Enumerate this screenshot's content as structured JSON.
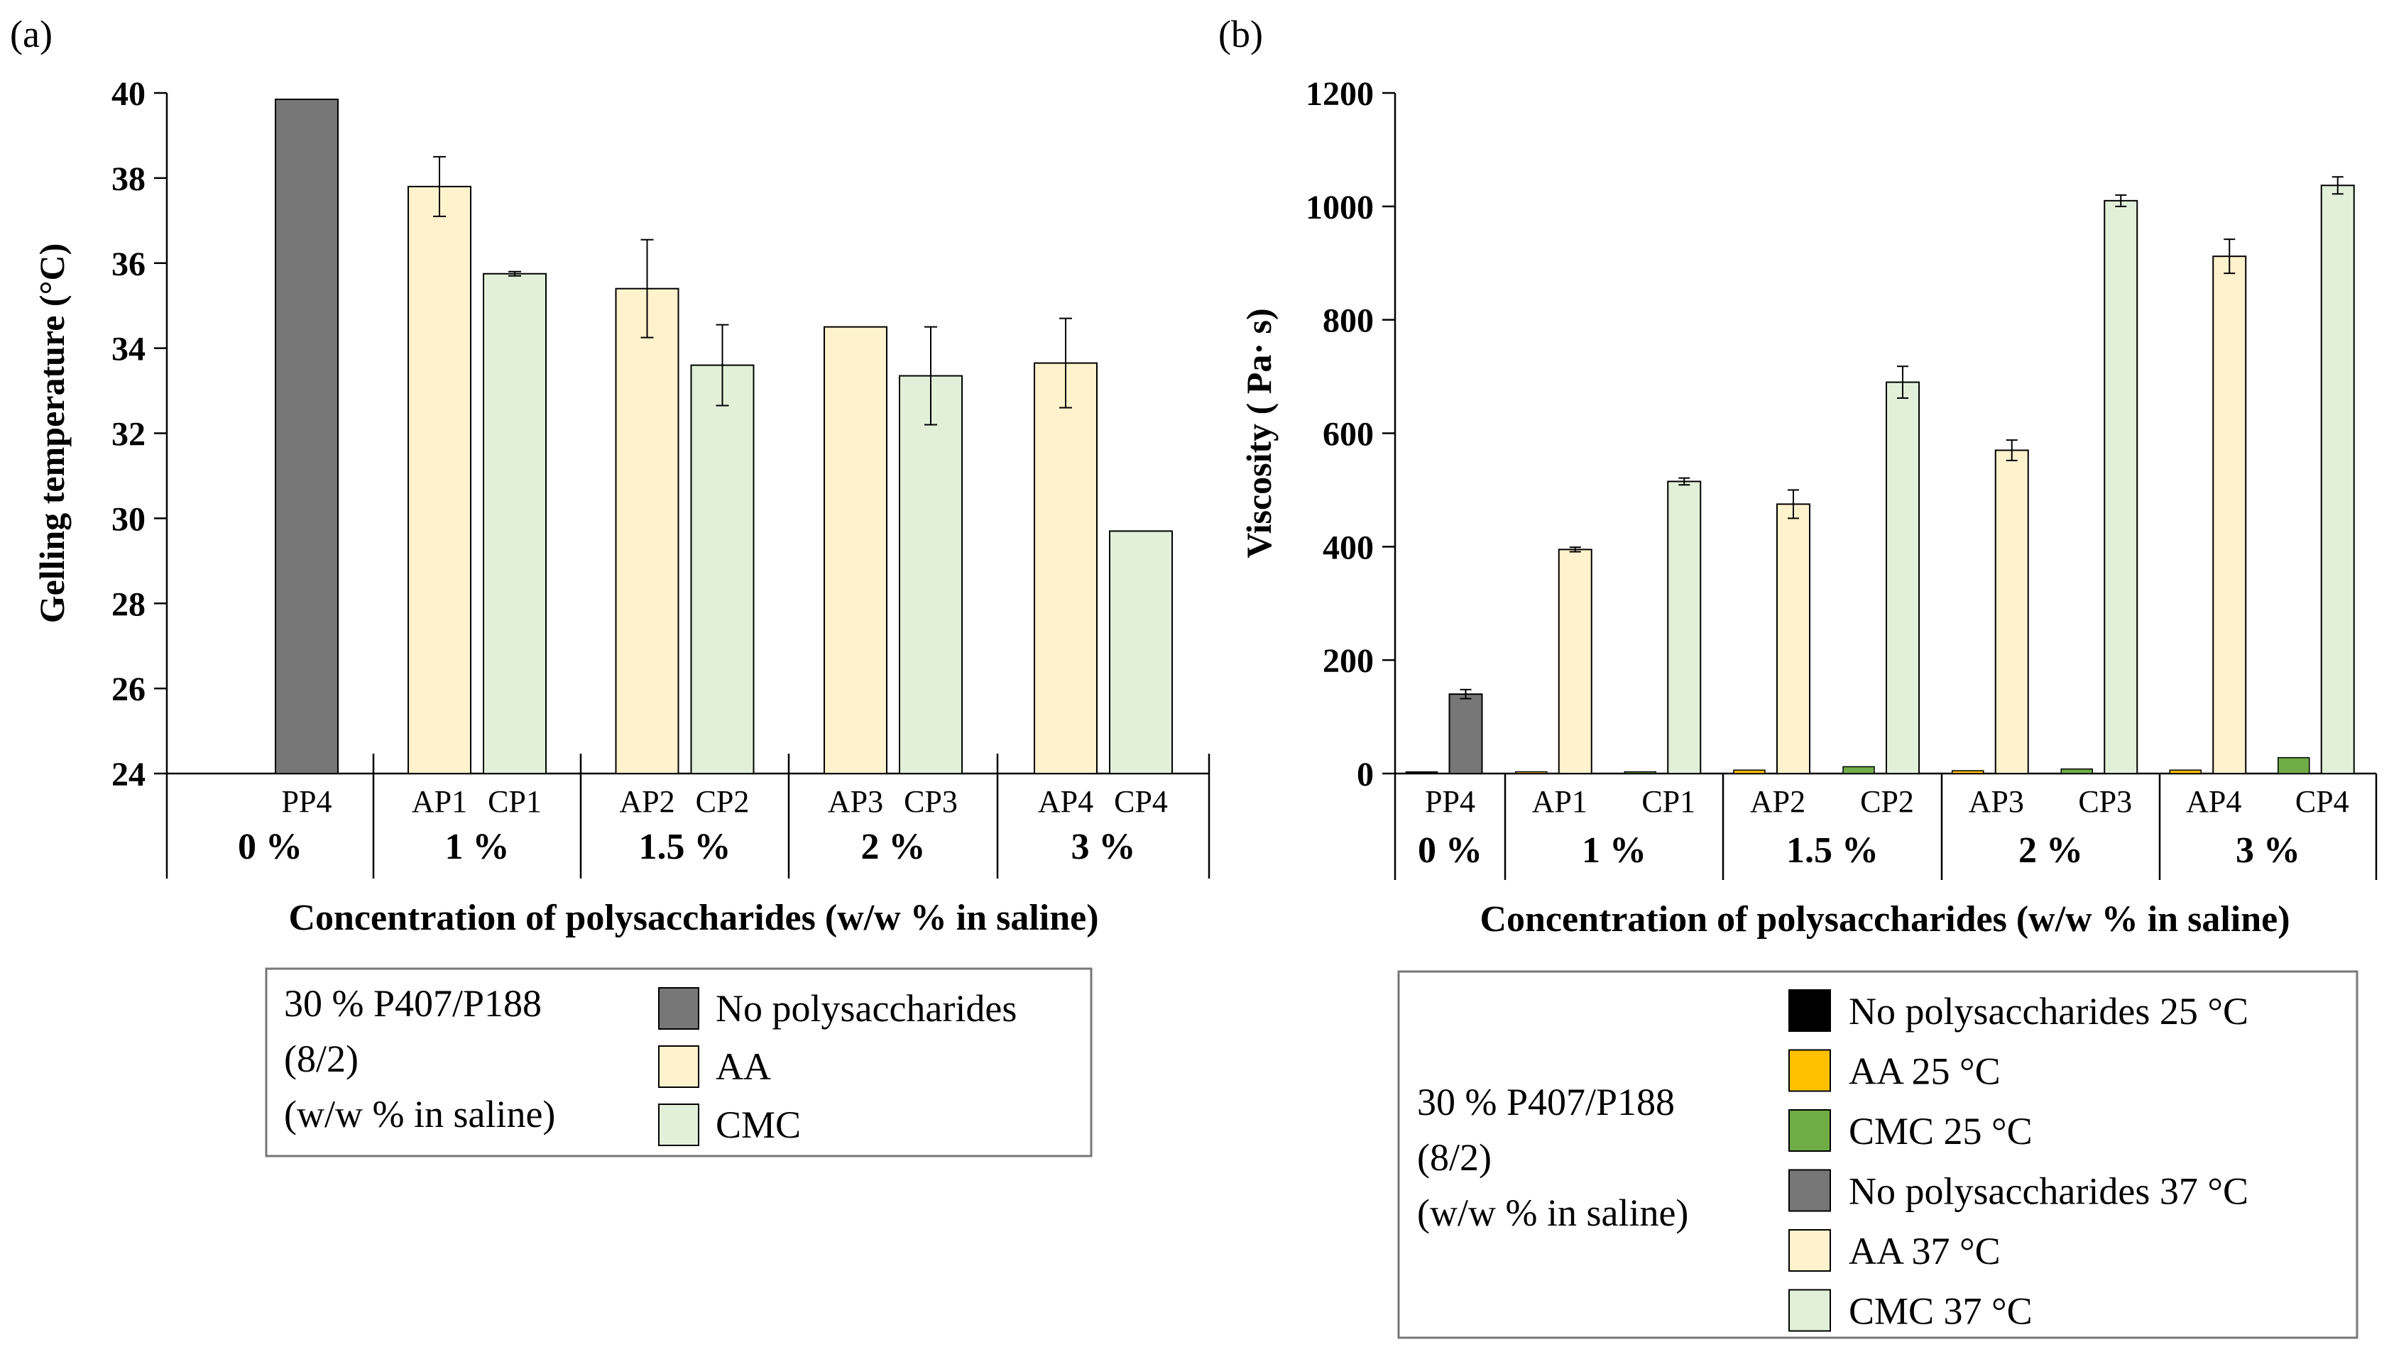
{
  "colors": {
    "none37": "#777777",
    "aa37": "#fff2cc",
    "cmc37": "#e2f0d9",
    "none25": "#000000",
    "aa25": "#ffc000",
    "cmc25": "#70ad47",
    "axis": "#000000"
  },
  "chart_data": [
    {
      "panel": "(a)",
      "type": "bar",
      "ylabel": "Gelling temperature (°C)",
      "xlabel": "Concentration of polysaccharides (w/w % in saline)",
      "ylim": [
        24,
        40
      ],
      "yticks": [
        24,
        26,
        28,
        30,
        32,
        34,
        36,
        38,
        40
      ],
      "grid": false,
      "groups": [
        {
          "label": "0 %",
          "bars": [
            {
              "name": "PP4",
              "value": 39.85,
              "err": 0,
              "series": "none37"
            }
          ]
        },
        {
          "label": "1 %",
          "bars": [
            {
              "name": "AP1",
              "value": 37.8,
              "err": 0.7,
              "series": "aa37"
            },
            {
              "name": "CP1",
              "value": 35.75,
              "err": 0.05,
              "series": "cmc37"
            }
          ]
        },
        {
          "label": "1.5 %",
          "bars": [
            {
              "name": "AP2",
              "value": 35.4,
              "err": 1.15,
              "series": "aa37"
            },
            {
              "name": "CP2",
              "value": 33.6,
              "err": 0.95,
              "series": "cmc37"
            }
          ]
        },
        {
          "label": "2 %",
          "bars": [
            {
              "name": "AP3",
              "value": 34.5,
              "err": 0,
              "series": "aa37"
            },
            {
              "name": "CP3",
              "value": 33.35,
              "err": 1.15,
              "series": "cmc37"
            }
          ]
        },
        {
          "label": "3 %",
          "bars": [
            {
              "name": "AP4",
              "value": 33.65,
              "err": 1.05,
              "series": "aa37"
            },
            {
              "name": "CP4",
              "value": 29.7,
              "err": 0,
              "series": "cmc37"
            }
          ]
        }
      ],
      "legend": {
        "title_lines": [
          "30 % P407/P188",
          "(8/2)",
          "(w/w % in saline)"
        ],
        "entries": [
          {
            "label": "No polysaccharides",
            "series": "none37"
          },
          {
            "label": "AA",
            "series": "aa37"
          },
          {
            "label": "CMC",
            "series": "cmc37"
          }
        ]
      }
    },
    {
      "panel": "(b)",
      "type": "bar",
      "ylabel": "Viscosity ( Pa· s)",
      "xlabel": "Concentration of polysaccharides (w/w % in saline)",
      "ylim": [
        0,
        1200
      ],
      "yticks": [
        0,
        200,
        400,
        600,
        800,
        1000,
        1200
      ],
      "grid": false,
      "groups": [
        {
          "label": "0 %",
          "samples": [
            {
              "name": "PP4",
              "v25": 3,
              "err25": 0,
              "s25": "none25",
              "v37": 140,
              "err37": 8,
              "s37": "none37"
            }
          ]
        },
        {
          "label": "1 %",
          "samples": [
            {
              "name": "AP1",
              "v25": 3,
              "err25": 0,
              "s25": "aa25",
              "v37": 395,
              "err37": 4,
              "s37": "aa37"
            },
            {
              "name": "CP1",
              "v25": 3,
              "err25": 0,
              "s25": "cmc25",
              "v37": 515,
              "err37": 6,
              "s37": "cmc37"
            }
          ]
        },
        {
          "label": "1.5 %",
          "samples": [
            {
              "name": "AP2",
              "v25": 6,
              "err25": 0,
              "s25": "aa25",
              "v37": 475,
              "err37": 25,
              "s37": "aa37"
            },
            {
              "name": "CP2",
              "v25": 12,
              "err25": 0,
              "s25": "cmc25",
              "v37": 690,
              "err37": 28,
              "s37": "cmc37"
            }
          ]
        },
        {
          "label": "2 %",
          "samples": [
            {
              "name": "AP3",
              "v25": 5,
              "err25": 0,
              "s25": "aa25",
              "v37": 570,
              "err37": 18,
              "s37": "aa37"
            },
            {
              "name": "CP3",
              "v25": 8,
              "err25": 0,
              "s25": "cmc25",
              "v37": 1010,
              "err37": 10,
              "s37": "cmc37"
            }
          ]
        },
        {
          "label": "3 %",
          "samples": [
            {
              "name": "AP4",
              "v25": 6,
              "err25": 0,
              "s25": "aa25",
              "v37": 912,
              "err37": 30,
              "s37": "aa37"
            },
            {
              "name": "CP4",
              "v25": 28,
              "err25": 0,
              "s25": "cmc25",
              "v37": 1037,
              "err37": 15,
              "s37": "cmc37"
            }
          ]
        }
      ],
      "legend": {
        "title_lines": [
          "30 % P407/P188",
          "(8/2)",
          "(w/w % in saline)"
        ],
        "entries": [
          {
            "label": "No polysaccharides 25 °C",
            "series": "none25"
          },
          {
            "label": "AA 25 °C",
            "series": "aa25"
          },
          {
            "label": "CMC 25 °C",
            "series": "cmc25"
          },
          {
            "label": "No polysaccharides 37 °C",
            "series": "none37"
          },
          {
            "label": "AA 37 °C",
            "series": "aa37"
          },
          {
            "label": "CMC 37 °C",
            "series": "cmc37"
          }
        ]
      }
    }
  ]
}
